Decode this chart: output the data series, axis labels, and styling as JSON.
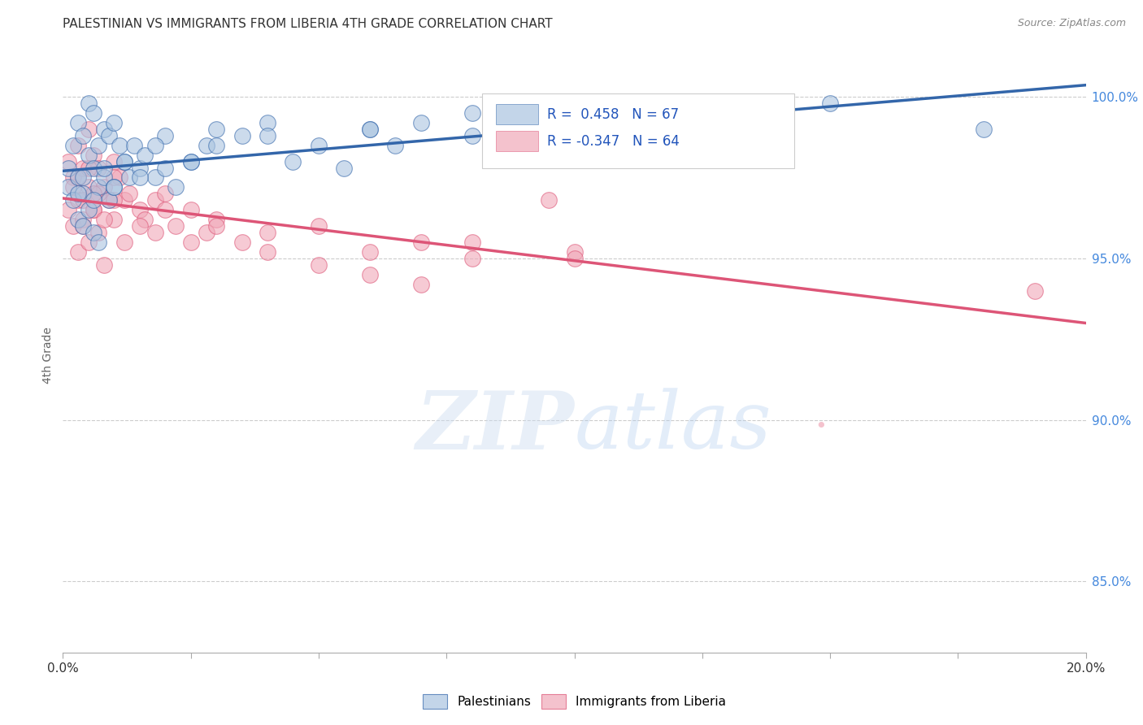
{
  "title": "PALESTINIAN VS IMMIGRANTS FROM LIBERIA 4TH GRADE CORRELATION CHART",
  "source": "Source: ZipAtlas.com",
  "ylabel": "4th Grade",
  "legend_blue_label": "Palestinians",
  "legend_pink_label": "Immigrants from Liberia",
  "R_blue": 0.458,
  "N_blue": 67,
  "R_pink": -0.347,
  "N_pink": 64,
  "blue_color": "#aac4e0",
  "pink_color": "#f0a8b8",
  "blue_line_color": "#3366aa",
  "pink_line_color": "#dd5577",
  "background_color": "#ffffff",
  "grid_color": "#cccccc",
  "x_min": 0.0,
  "x_max": 0.2,
  "y_min": 0.828,
  "y_max": 1.012,
  "blue_scatter_x": [
    0.001,
    0.001,
    0.002,
    0.002,
    0.003,
    0.003,
    0.003,
    0.004,
    0.004,
    0.004,
    0.005,
    0.005,
    0.005,
    0.006,
    0.006,
    0.006,
    0.007,
    0.007,
    0.007,
    0.008,
    0.008,
    0.009,
    0.009,
    0.01,
    0.01,
    0.011,
    0.012,
    0.013,
    0.014,
    0.015,
    0.016,
    0.018,
    0.02,
    0.022,
    0.025,
    0.028,
    0.03,
    0.035,
    0.04,
    0.045,
    0.05,
    0.055,
    0.06,
    0.065,
    0.07,
    0.08,
    0.09,
    0.1,
    0.11,
    0.12,
    0.003,
    0.004,
    0.006,
    0.008,
    0.01,
    0.012,
    0.015,
    0.018,
    0.02,
    0.025,
    0.03,
    0.04,
    0.06,
    0.08,
    0.1,
    0.15,
    0.18
  ],
  "blue_scatter_y": [
    0.978,
    0.972,
    0.985,
    0.968,
    0.992,
    0.975,
    0.962,
    0.988,
    0.97,
    0.96,
    0.998,
    0.982,
    0.965,
    0.995,
    0.978,
    0.958,
    0.985,
    0.972,
    0.955,
    0.99,
    0.975,
    0.988,
    0.968,
    0.992,
    0.972,
    0.985,
    0.98,
    0.975,
    0.985,
    0.978,
    0.982,
    0.975,
    0.988,
    0.972,
    0.98,
    0.985,
    0.99,
    0.988,
    0.992,
    0.98,
    0.985,
    0.978,
    0.99,
    0.985,
    0.992,
    0.988,
    0.995,
    0.985,
    0.99,
    0.992,
    0.97,
    0.975,
    0.968,
    0.978,
    0.972,
    0.98,
    0.975,
    0.985,
    0.978,
    0.98,
    0.985,
    0.988,
    0.99,
    0.995,
    0.988,
    0.998,
    0.99
  ],
  "pink_scatter_x": [
    0.001,
    0.001,
    0.002,
    0.002,
    0.003,
    0.003,
    0.003,
    0.004,
    0.004,
    0.005,
    0.005,
    0.005,
    0.006,
    0.006,
    0.007,
    0.007,
    0.008,
    0.008,
    0.009,
    0.01,
    0.01,
    0.011,
    0.012,
    0.013,
    0.015,
    0.016,
    0.018,
    0.02,
    0.022,
    0.025,
    0.028,
    0.03,
    0.035,
    0.04,
    0.05,
    0.06,
    0.07,
    0.08,
    0.095,
    0.1,
    0.002,
    0.003,
    0.004,
    0.005,
    0.006,
    0.007,
    0.008,
    0.01,
    0.012,
    0.015,
    0.018,
    0.02,
    0.025,
    0.03,
    0.04,
    0.05,
    0.06,
    0.07,
    0.08,
    0.1,
    0.004,
    0.006,
    0.01,
    0.19
  ],
  "pink_scatter_y": [
    0.98,
    0.965,
    0.975,
    0.96,
    0.985,
    0.968,
    0.952,
    0.978,
    0.962,
    0.99,
    0.972,
    0.955,
    0.982,
    0.965,
    0.978,
    0.958,
    0.972,
    0.948,
    0.968,
    0.98,
    0.962,
    0.975,
    0.968,
    0.97,
    0.965,
    0.962,
    0.968,
    0.97,
    0.96,
    0.965,
    0.958,
    0.962,
    0.955,
    0.958,
    0.96,
    0.952,
    0.955,
    0.95,
    0.968,
    0.952,
    0.972,
    0.975,
    0.968,
    0.978,
    0.965,
    0.97,
    0.962,
    0.968,
    0.955,
    0.96,
    0.958,
    0.965,
    0.955,
    0.96,
    0.952,
    0.948,
    0.945,
    0.942,
    0.955,
    0.95,
    0.96,
    0.97,
    0.975,
    0.94
  ]
}
